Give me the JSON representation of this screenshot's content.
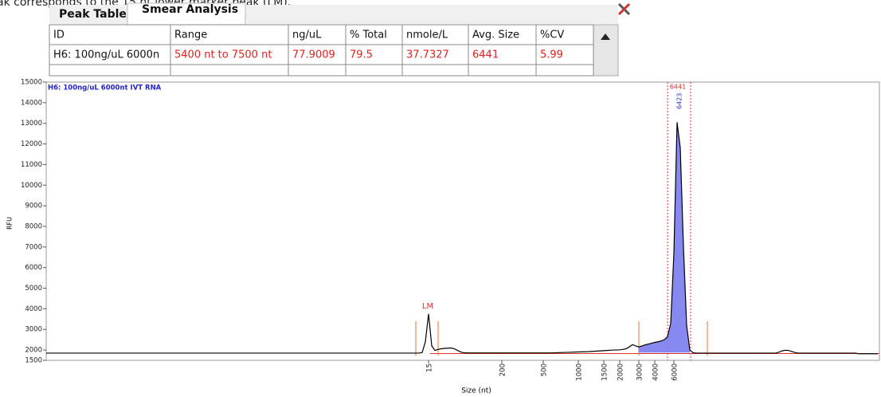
{
  "caption": "ak corresponds to the 15 nt lower marker peak (LM).",
  "tabs": [
    "Peak Table",
    "Smear Analysis"
  ],
  "table": {
    "header": [
      "ID",
      "Range",
      "ng/uL",
      "% Total",
      "nmole/L",
      "Avg. Size",
      "%CV"
    ],
    "rows": [
      [
        "H6: 100ng/uL 6000n",
        "5400 nt to 7500 nt",
        "77.9009",
        "79.5",
        "37.7327",
        "6441",
        "5.99"
      ]
    ]
  },
  "chart_data": {
    "type": "line",
    "title": "H6: 100ng/uL 6000nt IVT RNA",
    "ylabel": "RFU",
    "xlabel": "Size (nt)",
    "color": "#000000",
    "smear_color": "#7b7bef",
    "marker_label": "LM",
    "smear_label": "6441",
    "peak_label": "6423",
    "ylim": [
      1500,
      15000
    ],
    "yticks": [
      1500,
      2000,
      3000,
      4000,
      5000,
      6000,
      7000,
      8000,
      9000,
      10000,
      11000,
      12000,
      13000,
      14000,
      15000
    ],
    "categories": [
      null,
      null,
      null,
      null,
      null,
      null,
      null,
      null,
      null,
      null,
      null,
      null,
      null,
      null,
      null,
      null,
      null,
      null,
      null,
      null,
      null,
      null,
      null,
      null,
      null,
      null,
      null,
      null,
      null,
      null,
      null,
      null,
      null,
      null,
      null,
      null,
      null,
      null,
      null,
      null,
      null,
      null,
      null,
      null,
      null,
      null,
      null,
      null,
      null,
      null,
      null,
      null,
      null,
      null,
      null,
      null,
      null,
      null,
      null,
      null,
      null,
      null,
      null,
      null,
      null,
      null,
      null,
      null,
      null,
      null,
      null,
      null,
      null,
      null,
      null,
      null,
      null,
      null,
      null,
      null,
      null,
      null,
      null,
      null,
      null,
      null,
      null,
      null,
      null,
      null,
      null,
      null,
      null,
      null,
      null,
      null,
      null,
      null,
      null,
      null,
      null,
      null,
      null,
      null,
      null,
      null,
      null,
      null,
      null,
      null,
      null,
      null,
      null,
      null,
      null,
      null,
      null,
      null,
      null,
      null,
      "15",
      null,
      null,
      null,
      null,
      null,
      null,
      null,
      null,
      null,
      null,
      null,
      null,
      null,
      null,
      null,
      null,
      null,
      null,
      null,
      null,
      null,
      null,
      "200",
      null,
      null,
      null,
      null,
      null,
      null,
      null,
      null,
      null,
      null,
      null,
      null,
      "500",
      null,
      null,
      null,
      null,
      null,
      null,
      null,
      null,
      null,
      null,
      "1000",
      null,
      null,
      null,
      null,
      null,
      null,
      null,
      "1500",
      null,
      null,
      null,
      null,
      "2000",
      null,
      null,
      null,
      null,
      null,
      "3000",
      null,
      null,
      null,
      null,
      "4000",
      null,
      null,
      null,
      null,
      null,
      "6000",
      null,
      null,
      null,
      null,
      null,
      null,
      null,
      null,
      null,
      null,
      null,
      null,
      null,
      null,
      null,
      null,
      null,
      null,
      null,
      null,
      null,
      null,
      null,
      null,
      null,
      null,
      null,
      null,
      null,
      null,
      null,
      null,
      null,
      null,
      null,
      null,
      null,
      null,
      null,
      null,
      null,
      null,
      null,
      null,
      null,
      null,
      null,
      null,
      null,
      null,
      null,
      null,
      null,
      null,
      null,
      null,
      null,
      null,
      null,
      null,
      null,
      null,
      null,
      null
    ],
    "values": [
      1850,
      1850,
      1850,
      1850,
      1850,
      1850,
      1850,
      1850,
      1850,
      1850,
      1850,
      1850,
      1850,
      1850,
      1850,
      1850,
      1850,
      1850,
      1850,
      1850,
      1850,
      1850,
      1850,
      1850,
      1850,
      1850,
      1850,
      1850,
      1850,
      1850,
      1850,
      1850,
      1850,
      1850,
      1850,
      1850,
      1850,
      1850,
      1850,
      1850,
      1850,
      1850,
      1850,
      1850,
      1850,
      1850,
      1850,
      1850,
      1850,
      1850,
      1850,
      1850,
      1850,
      1850,
      1850,
      1850,
      1850,
      1850,
      1850,
      1850,
      1850,
      1850,
      1850,
      1850,
      1850,
      1850,
      1850,
      1850,
      1850,
      1850,
      1850,
      1850,
      1850,
      1850,
      1850,
      1850,
      1850,
      1850,
      1850,
      1850,
      1850,
      1850,
      1850,
      1850,
      1850,
      1850,
      1850,
      1850,
      1850,
      1850,
      1850,
      1850,
      1850,
      1850,
      1850,
      1850,
      1850,
      1850,
      1850,
      1850,
      1850,
      1850,
      1850,
      1850,
      1850,
      1850,
      1850,
      1850,
      1850,
      1850,
      1850,
      1850,
      1850,
      1850,
      1850,
      1850,
      1850,
      1850,
      1880,
      2400,
      3750,
      2200,
      1980,
      2030,
      2060,
      2080,
      2090,
      2100,
      2070,
      1990,
      1910,
      1870,
      1860,
      1860,
      1860,
      1860,
      1860,
      1860,
      1860,
      1860,
      1860,
      1860,
      1860,
      1860,
      1860,
      1860,
      1860,
      1860,
      1860,
      1860,
      1860,
      1860,
      1860,
      1860,
      1860,
      1860,
      1860,
      1860,
      1860,
      1860,
      1870,
      1875,
      1880,
      1885,
      1890,
      1895,
      1900,
      1905,
      1910,
      1915,
      1920,
      1930,
      1940,
      1950,
      1960,
      1970,
      1980,
      1990,
      2000,
      2000,
      2010,
      2030,
      2060,
      2150,
      2260,
      2200,
      2150,
      2200,
      2250,
      2290,
      2330,
      2370,
      2400,
      2440,
      2500,
      2650,
      3300,
      6700,
      13050,
      11800,
      7000,
      3200,
      2000,
      1870,
      1850,
      1850,
      1850,
      1850,
      1850,
      1850,
      1850,
      1850,
      1850,
      1850,
      1850,
      1850,
      1850,
      1850,
      1850,
      1850,
      1850,
      1850,
      1850,
      1850,
      1850,
      1850,
      1850,
      1850,
      1850,
      1850,
      1900,
      1960,
      1990,
      1980,
      1930,
      1880,
      1850,
      1850,
      1850,
      1850,
      1850,
      1850,
      1850,
      1850,
      1850,
      1850,
      1850,
      1850,
      1850,
      1850,
      1850,
      1850,
      1850,
      1850,
      1850,
      1820,
      1820,
      1820,
      1820,
      1820,
      1820,
      1820
    ]
  }
}
